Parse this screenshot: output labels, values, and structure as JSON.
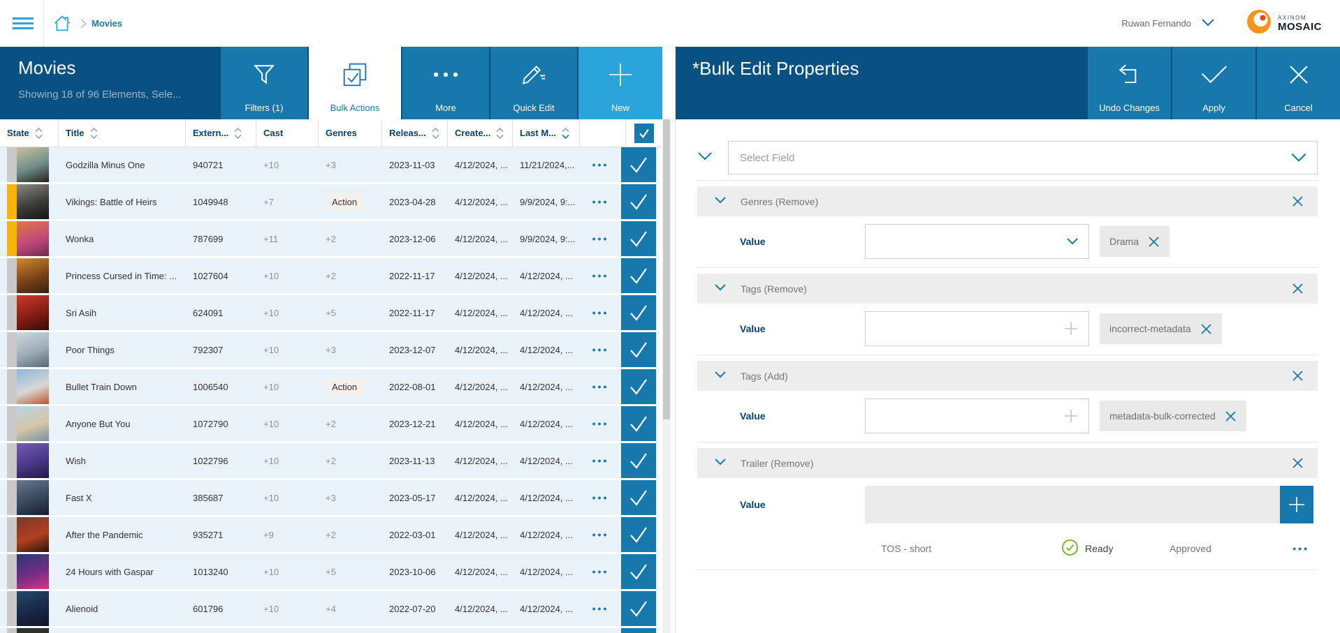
{
  "colors": {
    "band_dark": "#0a5183",
    "button_blue": "#1779ab",
    "accent_light_blue": "#2aa4db",
    "row_bg": "#e9f1f9",
    "state_orange": "#f5b50a",
    "state_gray": "#c9c9c9",
    "ready_green": "#76b82a"
  },
  "topbar": {
    "breadcrumb_current": "Movies",
    "user_name": "Ruwan Fernando",
    "brand_top": "AXINOM",
    "brand_bottom": "MOSAIC"
  },
  "list_header": {
    "title": "Movies",
    "subtitle": "Showing 18 of 96 Elements, Sele...",
    "buttons": [
      {
        "label": "Filters (1)",
        "icon": "filter",
        "variant": "primary"
      },
      {
        "label": "Bulk Actions",
        "icon": "bulk-check",
        "variant": "active"
      },
      {
        "label": "More",
        "icon": "dots",
        "variant": "primary"
      },
      {
        "label": "Quick Edit",
        "icon": "pencil",
        "variant": "primary"
      },
      {
        "label": "New",
        "icon": "plus",
        "variant": "accent"
      }
    ]
  },
  "table": {
    "columns": [
      {
        "label": "State",
        "sortable": true
      },
      {
        "label": "Title",
        "sortable": true
      },
      {
        "label": "Extern...",
        "sortable": true
      },
      {
        "label": "Cast",
        "sortable": false
      },
      {
        "label": "Genres",
        "sortable": false
      },
      {
        "label": "Releas...",
        "sortable": true
      },
      {
        "label": "Create...",
        "sortable": true
      },
      {
        "label": "Last M...",
        "sortable": true,
        "sort": "desc"
      }
    ],
    "rows": [
      {
        "title": "Godzilla Minus One",
        "external_id": "940721",
        "cast": "+10",
        "genres": "+3",
        "genre_chip": false,
        "released": "2023-11-03",
        "created": "4/12/2024, ...",
        "last_modified": "11/21/2024,...",
        "state": "gray",
        "poster": [
          "#cbbf9e",
          "#6f8d88",
          "#262219"
        ]
      },
      {
        "title": "Vikings: Battle of Heirs",
        "external_id": "1049948",
        "cast": "+7",
        "genres": "Action",
        "genre_chip": true,
        "released": "2023-04-28",
        "created": "4/12/2024, ...",
        "last_modified": "9/9/2024, 9:...",
        "state": "orange",
        "poster": [
          "#8a8a85",
          "#3c3c38",
          "#141414"
        ]
      },
      {
        "title": "Wonka",
        "external_id": "787699",
        "cast": "+11",
        "genres": "+2",
        "genre_chip": false,
        "released": "2023-12-06",
        "created": "4/12/2024, ...",
        "last_modified": "9/9/2024, 9:...",
        "state": "orange",
        "poster": [
          "#e0793f",
          "#c2497a",
          "#6e2a50"
        ]
      },
      {
        "title": "Princess Cursed in Time: ...",
        "external_id": "1027604",
        "cast": "+10",
        "genres": "+2",
        "genre_chip": false,
        "released": "2022-11-17",
        "created": "4/12/2024, ...",
        "last_modified": "4/12/2024, ...",
        "state": "gray",
        "poster": [
          "#d08a30",
          "#7c4318",
          "#34200e"
        ]
      },
      {
        "title": "Sri Asih",
        "external_id": "624091",
        "cast": "+10",
        "genres": "+5",
        "genre_chip": false,
        "released": "2022-11-17",
        "created": "4/12/2024, ...",
        "last_modified": "4/12/2024, ...",
        "state": "gray",
        "poster": [
          "#cc3a2a",
          "#841d14",
          "#380c07"
        ]
      },
      {
        "title": "Poor Things",
        "external_id": "792307",
        "cast": "+10",
        "genres": "+3",
        "genre_chip": false,
        "released": "2023-12-07",
        "created": "4/12/2024, ...",
        "last_modified": "4/12/2024, ...",
        "state": "gray",
        "poster": [
          "#cdd6dc",
          "#9cadb8",
          "#5a6870"
        ]
      },
      {
        "title": "Bullet Train Down",
        "external_id": "1006540",
        "cast": "+10",
        "genres": "Action",
        "genre_chip": true,
        "released": "2022-08-01",
        "created": "4/12/2024, ...",
        "last_modified": "4/12/2024, ...",
        "state": "gray",
        "poster": [
          "#8bb5d5",
          "#d8d8d8",
          "#bf5429"
        ]
      },
      {
        "title": "Anyone But You",
        "external_id": "1072790",
        "cast": "+10",
        "genres": "+2",
        "genre_chip": false,
        "released": "2023-12-21",
        "created": "4/12/2024, ...",
        "last_modified": "4/12/2024, ...",
        "state": "gray",
        "poster": [
          "#b8d5e6",
          "#d6c6a6",
          "#7691a3"
        ]
      },
      {
        "title": "Wish",
        "external_id": "1022796",
        "cast": "+10",
        "genres": "+2",
        "genre_chip": false,
        "released": "2023-11-13",
        "created": "4/12/2024, ...",
        "last_modified": "4/12/2024, ...",
        "state": "gray",
        "poster": [
          "#765cae",
          "#473887",
          "#201846"
        ]
      },
      {
        "title": "Fast X",
        "external_id": "385687",
        "cast": "+10",
        "genres": "+3",
        "genre_chip": false,
        "released": "2023-05-17",
        "created": "4/12/2024, ...",
        "last_modified": "4/12/2024, ...",
        "state": "gray",
        "poster": [
          "#68788a",
          "#38485a",
          "#141f2b"
        ]
      },
      {
        "title": "After the Pandemic",
        "external_id": "935271",
        "cast": "+9",
        "genres": "+2",
        "genre_chip": false,
        "released": "2022-03-01",
        "created": "4/12/2024, ...",
        "last_modified": "4/12/2024, ...",
        "state": "gray",
        "poster": [
          "#76392a",
          "#b2401e",
          "#28140f"
        ]
      },
      {
        "title": "24 Hours with Gaspar",
        "external_id": "1013240",
        "cast": "+10",
        "genres": "+5",
        "genre_chip": false,
        "released": "2023-10-06",
        "created": "4/12/2024, ...",
        "last_modified": "4/12/2024, ...",
        "state": "gray",
        "poster": [
          "#28386f",
          "#742d85",
          "#d23786"
        ]
      },
      {
        "title": "Alienoid",
        "external_id": "601796",
        "cast": "+10",
        "genres": "+4",
        "genre_chip": false,
        "released": "2022-07-20",
        "created": "4/12/2024, ...",
        "last_modified": "4/12/2024, ...",
        "state": "gray",
        "poster": [
          "#27476a",
          "#182848",
          "#0e1424"
        ]
      }
    ]
  },
  "panel": {
    "title": "*Bulk Edit Properties",
    "actions": [
      {
        "label": "Undo Changes",
        "icon": "undo"
      },
      {
        "label": "Apply",
        "icon": "check"
      },
      {
        "label": "Cancel",
        "icon": "close"
      }
    ],
    "select_field_placeholder": "Select Field",
    "sections": [
      {
        "label": "Genres (Remove)",
        "value_label": "Value",
        "control": "dropdown",
        "chip": "Drama"
      },
      {
        "label": "Tags (Remove)",
        "value_label": "Value",
        "control": "tag-input",
        "chip": "incorrect-metadata"
      },
      {
        "label": "Tags (Add)",
        "value_label": "Value",
        "control": "tag-input",
        "chip": "metadata-bulk-corrected"
      },
      {
        "label": "Trailer (Remove)",
        "value_label": "Value",
        "control": "list",
        "item": {
          "name": "TOS - short",
          "status": "Ready",
          "approval": "Approved"
        }
      }
    ]
  }
}
